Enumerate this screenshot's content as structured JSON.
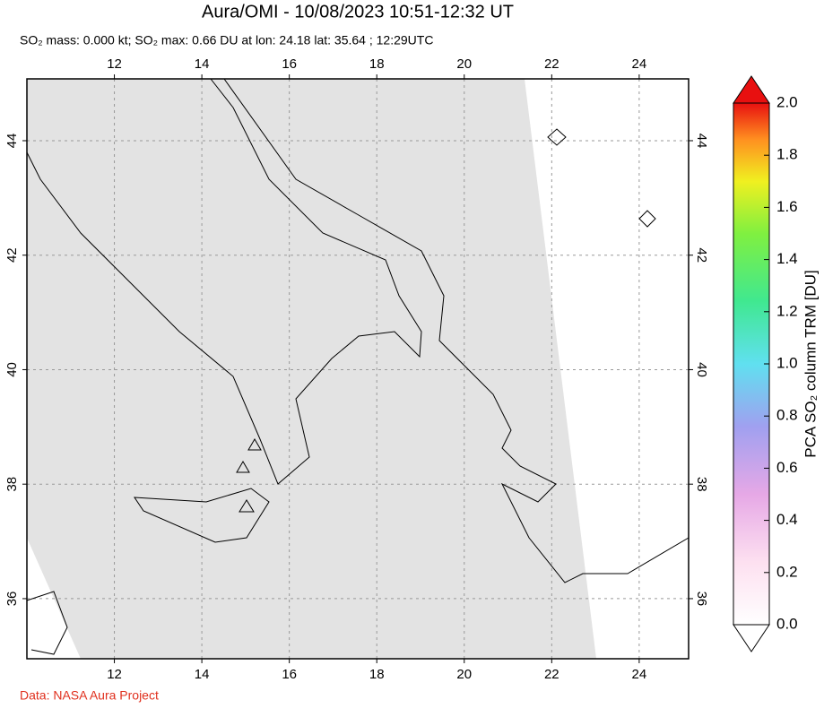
{
  "map": {
    "title": "Aura/OMI - 10/08/2023 10:51-12:32 UT",
    "subtitle": "SO₂ mass: 0.000 kt; SO₂ max: 0.66 DU at lon: 24.18 lat: 35.64 ; 12:29UTC",
    "xlim": [
      10,
      25.13
    ],
    "ylim": [
      34.95,
      45.08
    ],
    "xticks": [
      12,
      14,
      16,
      18,
      20,
      22,
      24
    ],
    "yticks": [
      36,
      38,
      40,
      42,
      44
    ],
    "colorbar": {
      "label": "PCA SO₂ column TRM [DU]",
      "lim": [
        0,
        2
      ],
      "ticks": [
        {
          "value": 0,
          "label": "0.0"
        },
        0.2,
        0.4,
        0.6,
        0.8,
        {
          "value": 1,
          "label": "1.0"
        },
        1.2,
        1.4,
        1.6,
        1.8,
        {
          "value": 2,
          "label": "2.0"
        }
      ]
    },
    "credit": "Data: NASA Aura Project"
  }
}
